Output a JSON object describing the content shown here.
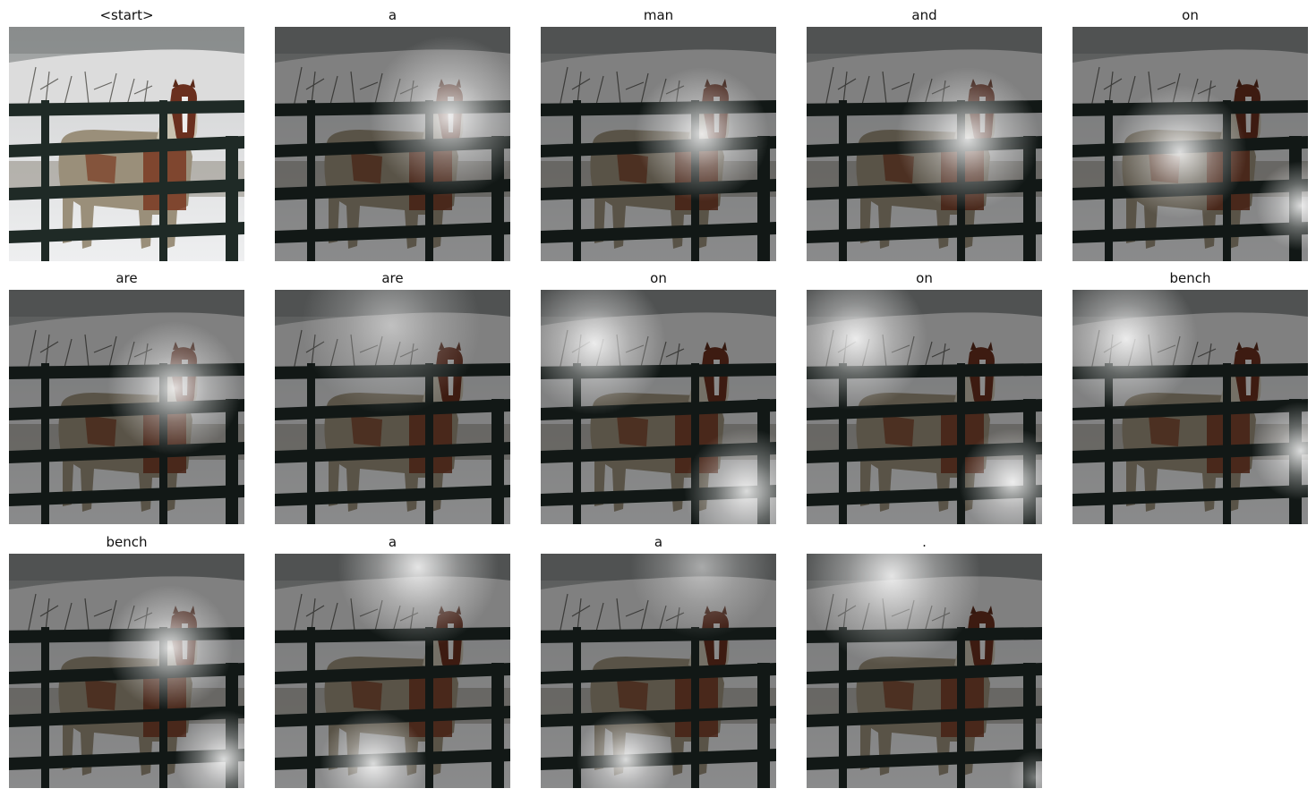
{
  "frames": [
    {
      "word": "<start>",
      "attention": "none"
    },
    {
      "word": "a",
      "attention": "horse head"
    },
    {
      "word": "man",
      "attention": "horse chest"
    },
    {
      "word": "and",
      "attention": "horse chest"
    },
    {
      "word": "on",
      "attention": "horse body and right edge"
    },
    {
      "word": "are",
      "attention": "horse chest"
    },
    {
      "word": "are",
      "attention": "hills"
    },
    {
      "word": "on",
      "attention": "upper left and lower right"
    },
    {
      "word": "on",
      "attention": "upper left and lower right"
    },
    {
      "word": "bench",
      "attention": "upper left and right edge"
    },
    {
      "word": "bench",
      "attention": "horse chest"
    },
    {
      "word": "a",
      "attention": "top center and ground"
    },
    {
      "word": "a",
      "attention": "ground"
    },
    {
      "word": ".",
      "attention": "top left"
    }
  ]
}
